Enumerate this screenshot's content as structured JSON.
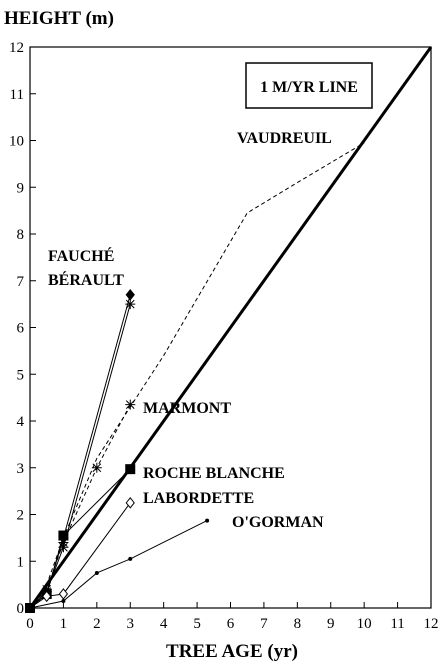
{
  "chart_data": {
    "type": "line",
    "y_label": "HEIGHT (m)",
    "x_label": "TREE AGE (yr)",
    "xlim": [
      0,
      12
    ],
    "ylim": [
      0,
      12
    ],
    "xticks": [
      0,
      1,
      2,
      3,
      4,
      5,
      6,
      7,
      8,
      9,
      10,
      11,
      12
    ],
    "yticks": [
      0,
      1,
      2,
      3,
      4,
      5,
      6,
      7,
      8,
      9,
      10,
      11,
      12
    ],
    "series": [
      {
        "name": "1 M/YR LINE",
        "color": "#000",
        "style": "thick",
        "marker": "none",
        "x": [
          0,
          12
        ],
        "values": [
          0,
          12
        ]
      },
      {
        "name": "VAUDREUIL",
        "color": "#000",
        "style": "dashed",
        "marker": "none",
        "x": [
          0,
          0.5,
          1,
          2,
          4,
          6.5,
          8,
          10
        ],
        "values": [
          0,
          0.5,
          1.5,
          3.2,
          5.4,
          8.45,
          9.1,
          9.95
        ]
      },
      {
        "name": "FAUCHÉ",
        "color": "#000",
        "style": "solid",
        "marker": "diamond-filled",
        "x": [
          0,
          0.5,
          1,
          3
        ],
        "values": [
          0,
          0.3,
          1.5,
          6.7
        ]
      },
      {
        "name": "BÉRAULT",
        "color": "#000",
        "style": "solid",
        "marker": "asterisk",
        "x": [
          0,
          0.5,
          1,
          3
        ],
        "values": [
          0,
          0.35,
          1.3,
          6.5
        ]
      },
      {
        "name": "MARMONT",
        "color": "#000",
        "style": "dashed",
        "marker": "asterisk",
        "x": [
          0,
          0.5,
          1,
          2,
          3
        ],
        "values": [
          0,
          0.4,
          1.4,
          3.0,
          4.35
        ]
      },
      {
        "name": "ROCHE BLANCHE",
        "color": "#000",
        "style": "solid",
        "marker": "square-filled",
        "x": [
          0,
          0.5,
          1,
          3
        ],
        "values": [
          0,
          0.3,
          1.55,
          2.97
        ]
      },
      {
        "name": "LABORDETTE",
        "color": "#000",
        "style": "solid",
        "marker": "diamond-open",
        "x": [
          0,
          0.5,
          1,
          3
        ],
        "values": [
          0,
          0.25,
          0.3,
          2.25
        ]
      },
      {
        "name": "O'GORMAN",
        "color": "#000",
        "style": "solid",
        "marker": "dot",
        "x": [
          0,
          1,
          2,
          3,
          5.3
        ],
        "values": [
          0,
          0.15,
          0.75,
          1.05,
          1.87
        ]
      }
    ]
  }
}
